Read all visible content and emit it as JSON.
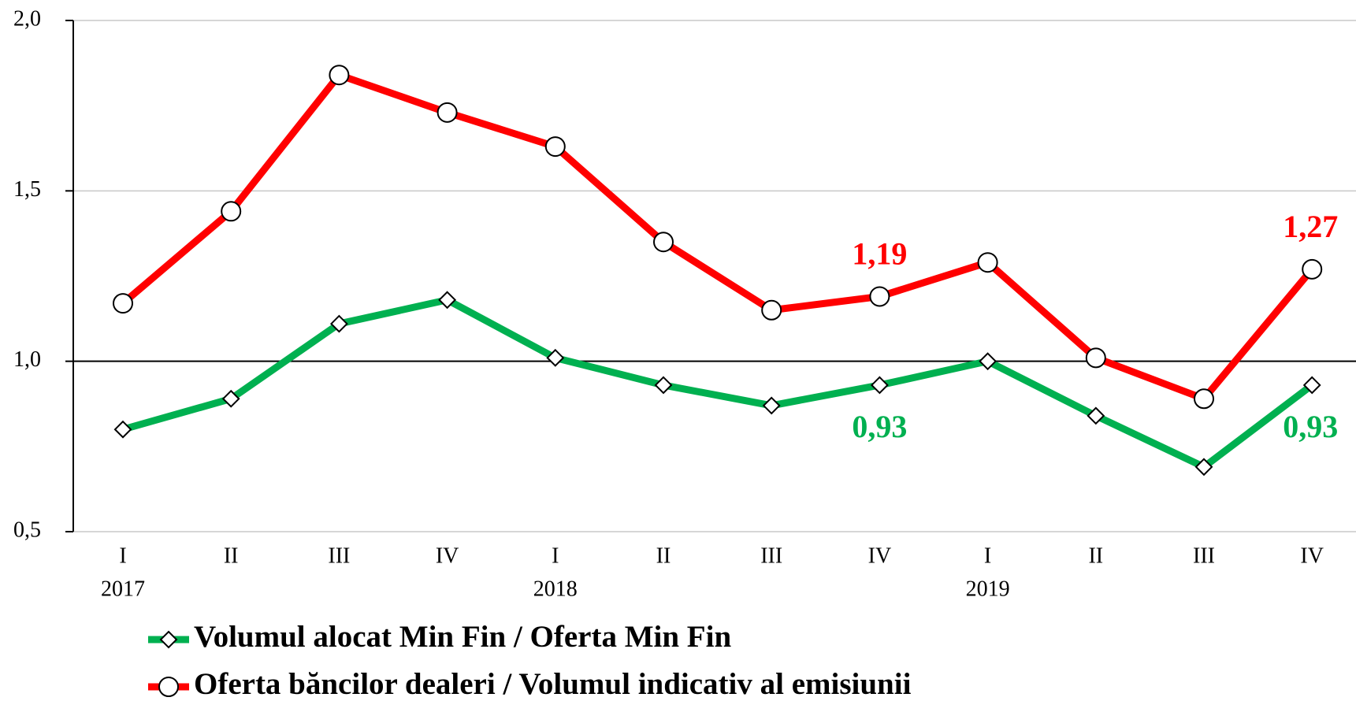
{
  "chart_data": {
    "type": "line",
    "categories": [
      "I",
      "II",
      "III",
      "IV",
      "I",
      "II",
      "III",
      "IV",
      "I",
      "II",
      "III",
      "IV"
    ],
    "year_labels": [
      "2017",
      null,
      null,
      null,
      "2018",
      null,
      null,
      null,
      "2019",
      null,
      null,
      null
    ],
    "series": [
      {
        "name": "Volumul alocat Min Fin / Oferta Min Fin",
        "color": "#00b050",
        "marker": "diamond",
        "values": [
          0.8,
          0.89,
          1.11,
          1.18,
          1.01,
          0.93,
          0.87,
          0.93,
          1.0,
          0.84,
          0.69,
          0.93
        ],
        "value_labels": [
          null,
          null,
          null,
          null,
          null,
          null,
          null,
          "0,93",
          null,
          null,
          null,
          "0,93"
        ]
      },
      {
        "name": "Oferta băncilor dealeri / Volumul indicativ al emisiunii",
        "color": "#ff0000",
        "marker": "circle",
        "values": [
          1.17,
          1.44,
          1.84,
          1.73,
          1.63,
          1.35,
          1.15,
          1.19,
          1.29,
          1.01,
          0.89,
          1.27
        ],
        "value_labels": [
          null,
          null,
          null,
          null,
          null,
          null,
          null,
          "1,19",
          null,
          null,
          null,
          "1,27"
        ]
      }
    ],
    "ylim": [
      0.5,
      2.0
    ],
    "yticks": [
      {
        "value": 0.5,
        "label": "0,5"
      },
      {
        "value": 1.0,
        "label": "1,0"
      },
      {
        "value": 1.5,
        "label": "1,5"
      },
      {
        "value": 2.0,
        "label": "2,0"
      }
    ],
    "reference_line": 1.0,
    "grid": true
  }
}
